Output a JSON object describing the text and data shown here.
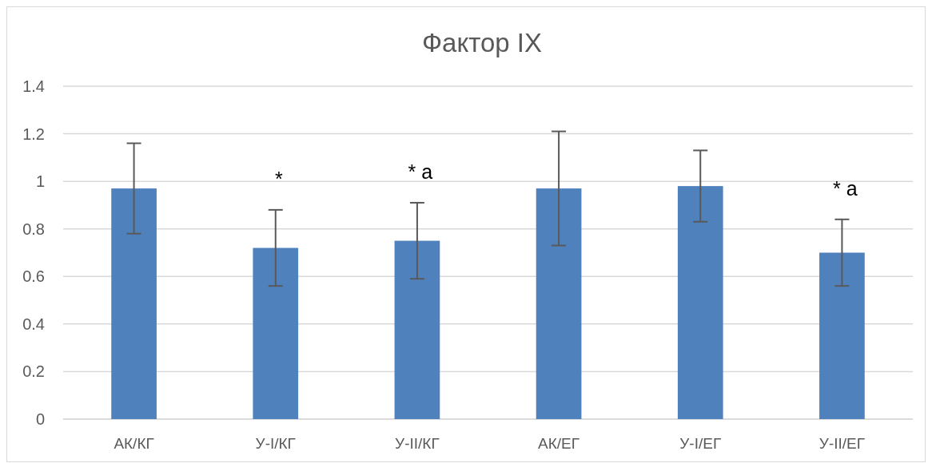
{
  "chart_data": {
    "type": "bar",
    "title": "Фактор IX",
    "categories": [
      "АК/КГ",
      "У-I/КГ",
      "У-II/КГ",
      "АК/ЕГ",
      "У-I/ЕГ",
      "У-II/ЕГ"
    ],
    "values": [
      0.97,
      0.72,
      0.75,
      0.97,
      0.98,
      0.7
    ],
    "color": "#4f81bd",
    "errors": [
      0.19,
      0.16,
      0.16,
      0.24,
      0.15,
      0.14
    ],
    "ylim": [
      0,
      1.4
    ],
    "yticks": [
      0,
      0.2,
      0.4,
      0.6,
      0.8,
      1,
      1.2,
      1.4
    ],
    "grid": "y",
    "annotations": [
      {
        "text": "*",
        "x": "У-I/КГ",
        "y": 0.72
      },
      {
        "text": "* a",
        "x": "У-II/КГ",
        "y": 0.75
      },
      {
        "text": "* a",
        "x": "У-II/ЕГ",
        "y": 0.7
      }
    ]
  }
}
